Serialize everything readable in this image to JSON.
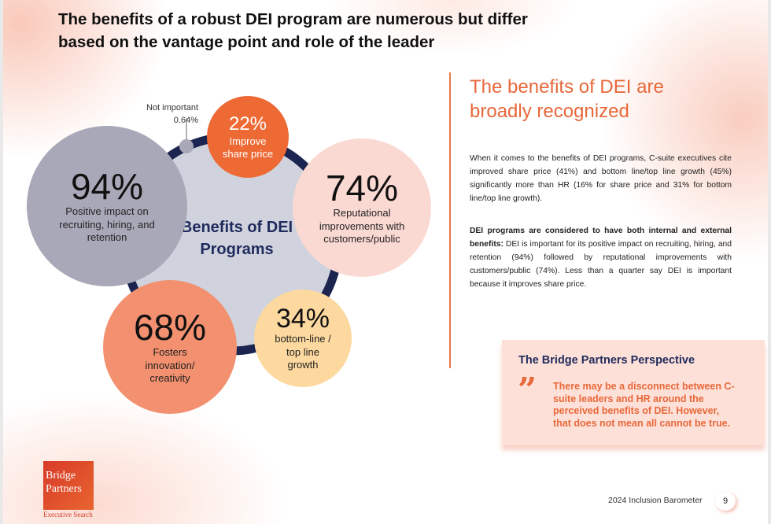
{
  "title": "The benefits of a robust DEI program are numerous but differ based on the vantage point and role of the leader",
  "diagram": {
    "center_label": "Benefits of DEI Programs",
    "not_important": {
      "label": "Not important",
      "value": "0.64%"
    },
    "items": [
      {
        "value": "94%",
        "label": "Positive impact on recruiting, hiring, and retention",
        "color": "#a9a8b8"
      },
      {
        "value": "22%",
        "label": "Improve share price",
        "color": "#ee6a35"
      },
      {
        "value": "74%",
        "label": "Reputational improvements with customers/public",
        "color": "#fbd9d3"
      },
      {
        "value": "34%",
        "label": "bottom-line / top line growth",
        "color": "#fdd9a0"
      },
      {
        "value": "68%",
        "label": "Fosters innovation/ creativity",
        "color": "#f2906f"
      }
    ]
  },
  "side": {
    "heading": "The benefits of DEI are broadly recognized",
    "para1": "When it comes to the benefits of DEI programs, C-suite executives cite improved share price (41%) and bottom line/top line growth (45%) significantly more than HR (16% for share price and 31% for bottom line/top line growth).",
    "para2_bold": "DEI programs are considered to have both internal and external benefits:",
    "para2": " DEI is important for its positive impact on recruiting, hiring, and retention (94%) followed by reputational improvements with customers/public (74%). Less than a quarter say DEI is important because it improves share price."
  },
  "perspective": {
    "title": "The Bridge Partners Perspective",
    "quote_mark": "”",
    "text": "There may be a disconnect between C-suite leaders and HR around the perceived benefits of DEI. However, that does not mean all cannot be true."
  },
  "logo": {
    "line1": "Bridge",
    "line2": "Partners",
    "sub": "Executive Search"
  },
  "footer": {
    "report": "2024 Inclusion Barometer",
    "page": "9"
  },
  "colors": {
    "accent": "#e8683a",
    "navy": "#1f2b5c"
  }
}
